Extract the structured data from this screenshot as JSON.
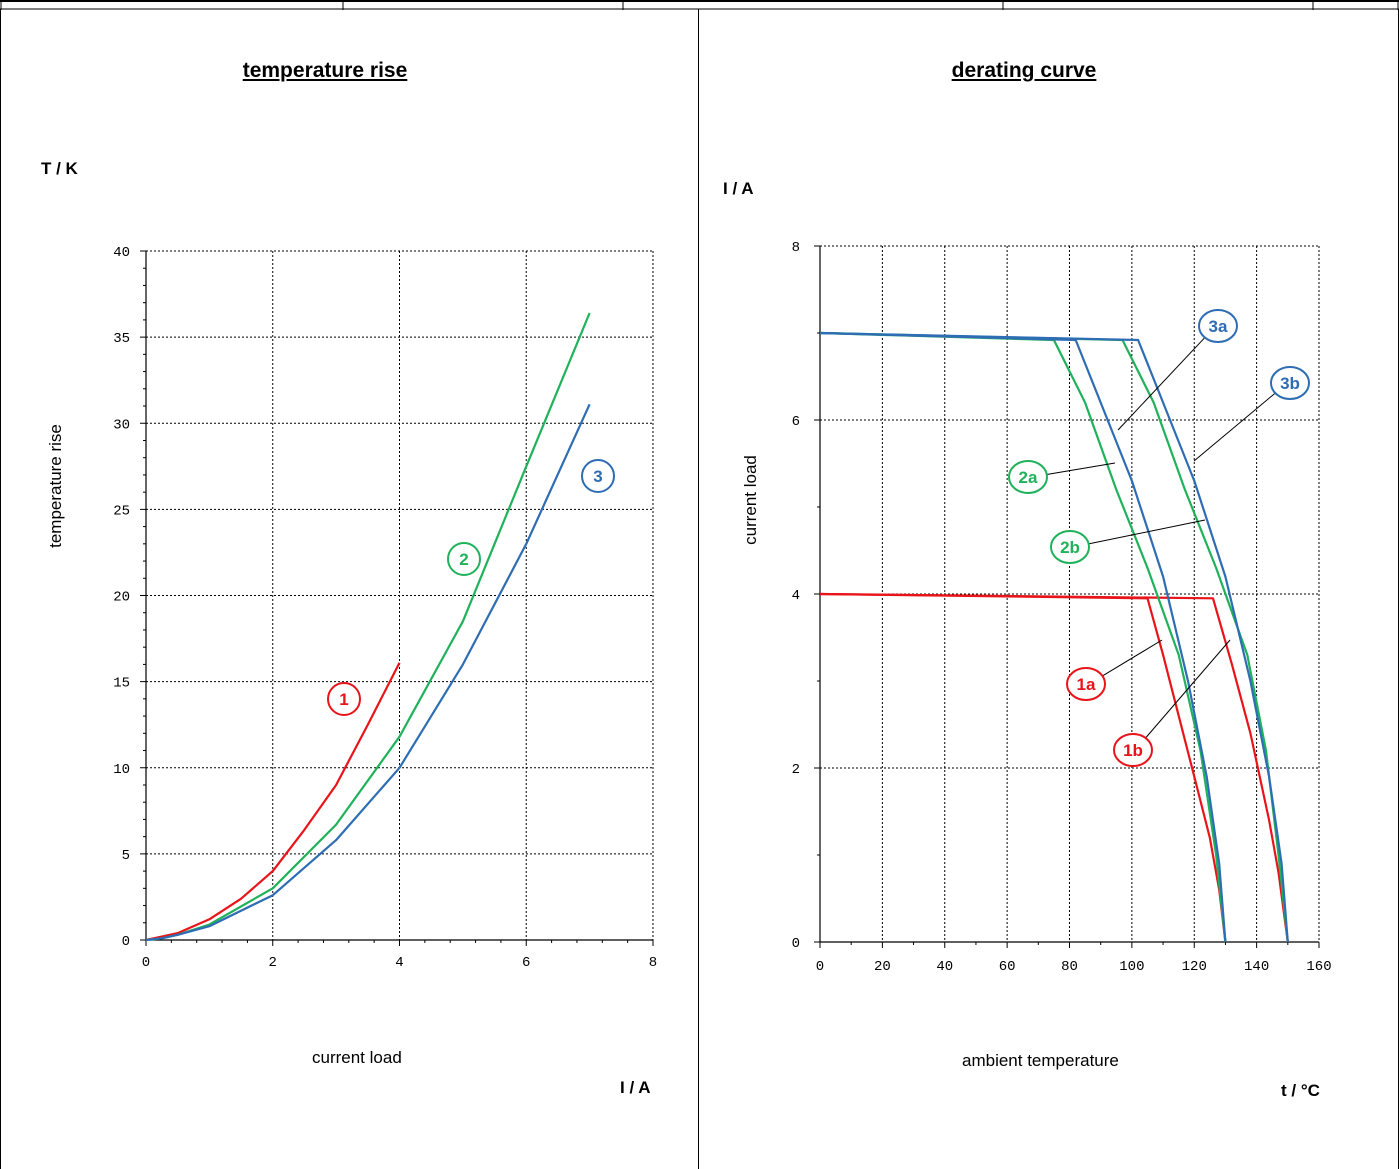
{
  "chart_data": [
    {
      "type": "line",
      "title": "temperature rise",
      "y_unit": "T / K",
      "ylabel": "temperature rise",
      "xlabel": "current load",
      "x_unit": "I / A",
      "xlim": [
        0,
        8
      ],
      "ylim": [
        0,
        40
      ],
      "x_ticks": [
        "0",
        "2",
        "4",
        "6",
        "8"
      ],
      "y_ticks": [
        "0",
        "5",
        "10",
        "15",
        "20",
        "25",
        "30",
        "35",
        "40"
      ],
      "grid": true,
      "series": [
        {
          "name": "1",
          "color": "#e8141a",
          "x": [
            0,
            0.25,
            0.5,
            1,
            1.5,
            2,
            2.5,
            3,
            3.5,
            4
          ],
          "y": [
            0,
            0.2,
            0.4,
            1.2,
            2.4,
            4.0,
            6.4,
            9.0,
            12.5,
            16.1
          ]
        },
        {
          "name": "2",
          "color": "#1fb25a",
          "x": [
            0,
            0.25,
            0.5,
            1,
            2,
            3,
            4,
            5,
            6,
            7
          ],
          "y": [
            0,
            0.1,
            0.3,
            0.9,
            3.0,
            6.7,
            11.8,
            18.5,
            27.5,
            36.4
          ]
        },
        {
          "name": "3",
          "color": "#2e6db4",
          "x": [
            0,
            0.25,
            0.5,
            1,
            2,
            3,
            4,
            5,
            6,
            7
          ],
          "y": [
            0,
            0.1,
            0.3,
            0.8,
            2.6,
            5.8,
            10.0,
            16.0,
            23.0,
            31.1
          ]
        }
      ]
    },
    {
      "type": "line",
      "title": "derating curve",
      "y_unit": "I / A",
      "ylabel": "current load",
      "xlabel": "ambient temperature",
      "x_unit": "t / °C",
      "xlim": [
        0,
        160
      ],
      "ylim": [
        0,
        8
      ],
      "x_ticks": [
        "0",
        "20",
        "40",
        "60",
        "80",
        "100",
        "120",
        "140",
        "160"
      ],
      "y_ticks": [
        "0",
        "2",
        "4",
        "6",
        "8"
      ],
      "grid": true,
      "series": [
        {
          "name": "1a",
          "color": "#e8141a",
          "x": [
            0,
            105,
            110,
            115,
            120,
            125,
            128,
            130
          ],
          "y": [
            4.0,
            3.95,
            3.3,
            2.6,
            1.9,
            1.2,
            0.6,
            0
          ]
        },
        {
          "name": "1b",
          "color": "#e8141a",
          "x": [
            0,
            126,
            132,
            138,
            144,
            147,
            150
          ],
          "y": [
            4.0,
            3.95,
            3.2,
            2.4,
            1.4,
            0.8,
            0
          ]
        },
        {
          "name": "2a",
          "color": "#1fb25a",
          "x": [
            0,
            75,
            85,
            95,
            105,
            115,
            122,
            127,
            130
          ],
          "y": [
            7.0,
            6.92,
            6.2,
            5.2,
            4.3,
            3.3,
            2.2,
            1.0,
            0
          ]
        },
        {
          "name": "2b",
          "color": "#1fb25a",
          "x": [
            0,
            97,
            107,
            117,
            127,
            137,
            143,
            147,
            150
          ],
          "y": [
            7.0,
            6.92,
            6.2,
            5.2,
            4.3,
            3.3,
            2.2,
            1.0,
            0
          ]
        },
        {
          "name": "3a",
          "color": "#2e6db4",
          "x": [
            0,
            82,
            90,
            100,
            110,
            118,
            124,
            128,
            130
          ],
          "y": [
            7.0,
            6.92,
            6.2,
            5.3,
            4.2,
            3.0,
            1.9,
            0.9,
            0
          ]
        },
        {
          "name": "3b",
          "color": "#2e6db4",
          "x": [
            0,
            102,
            110,
            120,
            130,
            138,
            144,
            148,
            150
          ],
          "y": [
            7.0,
            6.92,
            6.2,
            5.3,
            4.2,
            3.0,
            1.9,
            0.9,
            0
          ]
        }
      ]
    }
  ]
}
